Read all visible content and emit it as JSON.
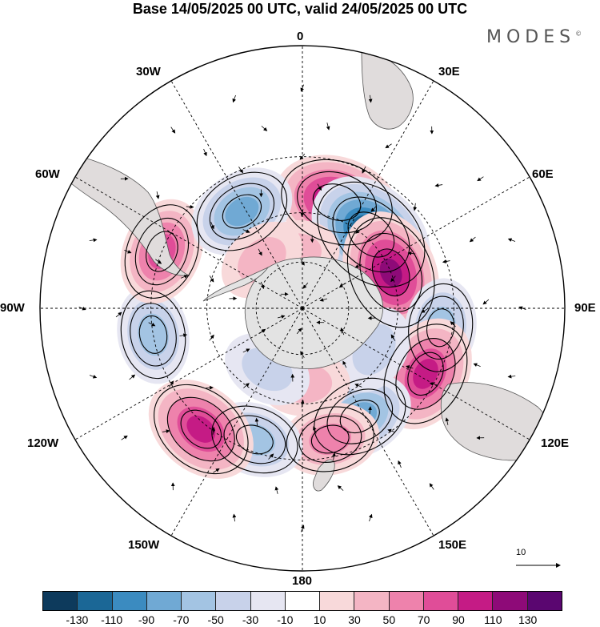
{
  "title": "Base 14/05/2025 00 UTC, valid 24/05/2025 00 UTC",
  "brand": "MODES",
  "brand_mark": "©",
  "longitude_labels": {
    "lon_0": "0",
    "lon_30e": "30E",
    "lon_60e": "60E",
    "lon_90e": "90E",
    "lon_120e": "120E",
    "lon_150e": "150E",
    "lon_180": "180",
    "lon_150w": "150W",
    "lon_120w": "120W",
    "lon_90w": "90W",
    "lon_60w": "60W",
    "lon_30w": "30W"
  },
  "reference_vector": {
    "label": "10"
  },
  "colorbar": {
    "colors": [
      "#0d3a5c",
      "#1b6796",
      "#3b8bc0",
      "#70a9d4",
      "#a3c4e3",
      "#c8d2ea",
      "#e6e6f2",
      "#ffffff",
      "#f8d9da",
      "#f4b5c4",
      "#ee82ac",
      "#e04d98",
      "#c51b85",
      "#8e0a78",
      "#5a0670"
    ],
    "tick_labels": [
      "-130",
      "-110",
      "-90",
      "-70",
      "-50",
      "-30",
      "-10",
      "10",
      "30",
      "50",
      "70",
      "90",
      "110",
      "130"
    ]
  },
  "map": {
    "projection": "south polar stereographic",
    "anomaly_centers": [
      {
        "lon": 18,
        "lat": -44,
        "value": 110
      },
      {
        "lon": 43,
        "lat": -48,
        "value": -130
      },
      {
        "lon": 68,
        "lat": -50,
        "value": 110
      },
      {
        "lon": 98,
        "lat": -34,
        "value": -50
      },
      {
        "lon": 118,
        "lat": -34,
        "value": 90
      },
      {
        "lon": 152,
        "lat": -40,
        "value": -70
      },
      {
        "lon": 168,
        "lat": -36,
        "value": 50
      },
      {
        "lon": -160,
        "lat": -34,
        "value": -50
      },
      {
        "lon": -140,
        "lat": -28,
        "value": 90
      },
      {
        "lon": -100,
        "lat": -30,
        "value": -50
      },
      {
        "lon": -68,
        "lat": -30,
        "value": 70
      },
      {
        "lon": -32,
        "lat": -43,
        "value": -70
      },
      {
        "lon": -8,
        "lat": -66,
        "value": 30
      },
      {
        "lon": 120,
        "lat": -55,
        "value": -30
      },
      {
        "lon": 178,
        "lat": -58,
        "value": 30
      },
      {
        "lon": -150,
        "lat": -60,
        "value": -30
      },
      {
        "lon": -40,
        "lat": -63,
        "value": 30
      }
    ]
  }
}
